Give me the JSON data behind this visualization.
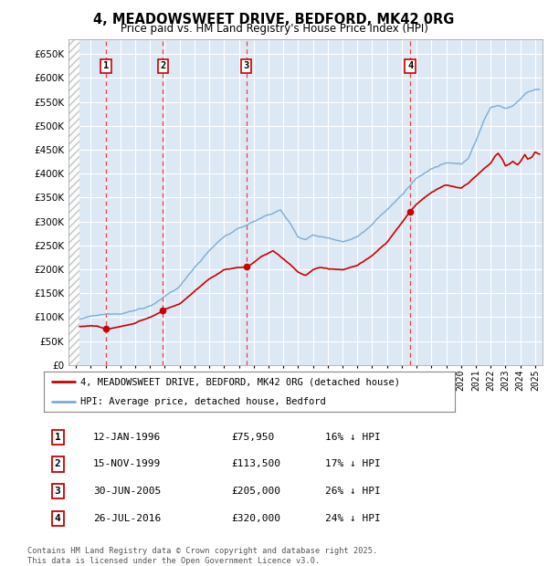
{
  "title": "4, MEADOWSWEET DRIVE, BEDFORD, MK42 0RG",
  "subtitle": "Price paid vs. HM Land Registry's House Price Index (HPI)",
  "footer": "Contains HM Land Registry data © Crown copyright and database right 2025.\nThis data is licensed under the Open Government Licence v3.0.",
  "legend_line1": "4, MEADOWSWEET DRIVE, BEDFORD, MK42 0RG (detached house)",
  "legend_line2": "HPI: Average price, detached house, Bedford",
  "purchases": [
    {
      "num": 1,
      "date": "12-JAN-1996",
      "price": 75950,
      "pct": "16% ↓ HPI",
      "year": 1996.04
    },
    {
      "num": 2,
      "date": "15-NOV-1999",
      "price": 113500,
      "pct": "17% ↓ HPI",
      "year": 1999.88
    },
    {
      "num": 3,
      "date": "30-JUN-2005",
      "price": 205000,
      "pct": "26% ↓ HPI",
      "year": 2005.5
    },
    {
      "num": 4,
      "date": "26-JUL-2016",
      "price": 320000,
      "pct": "24% ↓ HPI",
      "year": 2016.57
    }
  ],
  "ylim": [
    0,
    680000
  ],
  "yticks": [
    0,
    50000,
    100000,
    150000,
    200000,
    250000,
    300000,
    350000,
    400000,
    450000,
    500000,
    550000,
    600000,
    650000
  ],
  "xlim_start": 1993.5,
  "xlim_end": 2025.5,
  "data_start": 1994.25,
  "plot_bg_color": "#dde8f5",
  "grid_color": "#ffffff",
  "red_line_color": "#cc0000",
  "blue_line_color": "#7aadd4",
  "dashed_line_color": "#ee2222",
  "hpi_segments": [
    [
      1994.0,
      95000
    ],
    [
      1995.0,
      100000
    ],
    [
      1996.0,
      103000
    ],
    [
      1997.0,
      108000
    ],
    [
      1998.0,
      115000
    ],
    [
      1999.0,
      125000
    ],
    [
      2000.0,
      143000
    ],
    [
      2001.0,
      163000
    ],
    [
      2002.0,
      205000
    ],
    [
      2003.0,
      240000
    ],
    [
      2004.0,
      270000
    ],
    [
      2005.0,
      285000
    ],
    [
      2006.0,
      300000
    ],
    [
      2007.0,
      315000
    ],
    [
      2007.8,
      325000
    ],
    [
      2008.5,
      295000
    ],
    [
      2009.0,
      270000
    ],
    [
      2009.5,
      265000
    ],
    [
      2010.0,
      275000
    ],
    [
      2011.0,
      270000
    ],
    [
      2012.0,
      265000
    ],
    [
      2013.0,
      275000
    ],
    [
      2014.0,
      300000
    ],
    [
      2015.0,
      330000
    ],
    [
      2016.0,
      360000
    ],
    [
      2017.0,
      395000
    ],
    [
      2018.0,
      415000
    ],
    [
      2019.0,
      425000
    ],
    [
      2020.0,
      420000
    ],
    [
      2020.5,
      435000
    ],
    [
      2021.0,
      470000
    ],
    [
      2021.5,
      510000
    ],
    [
      2022.0,
      540000
    ],
    [
      2022.5,
      545000
    ],
    [
      2023.0,
      540000
    ],
    [
      2023.5,
      545000
    ],
    [
      2024.0,
      560000
    ],
    [
      2024.5,
      575000
    ],
    [
      2025.0,
      580000
    ],
    [
      2025.3,
      578000
    ]
  ],
  "red_segments": [
    [
      1994.0,
      80000
    ],
    [
      1995.0,
      83000
    ],
    [
      1995.5,
      82000
    ],
    [
      1996.04,
      75950
    ],
    [
      1996.5,
      78000
    ],
    [
      1997.0,
      82000
    ],
    [
      1998.0,
      88000
    ],
    [
      1999.0,
      100000
    ],
    [
      1999.88,
      113500
    ],
    [
      2000.0,
      117000
    ],
    [
      2001.0,
      128000
    ],
    [
      2002.0,
      155000
    ],
    [
      2003.0,
      180000
    ],
    [
      2004.0,
      200000
    ],
    [
      2005.0,
      205000
    ],
    [
      2005.5,
      205000
    ],
    [
      2006.0,
      215000
    ],
    [
      2006.5,
      228000
    ],
    [
      2007.0,
      235000
    ],
    [
      2007.3,
      240000
    ],
    [
      2007.8,
      228000
    ],
    [
      2008.5,
      210000
    ],
    [
      2009.0,
      195000
    ],
    [
      2009.5,
      188000
    ],
    [
      2010.0,
      200000
    ],
    [
      2010.5,
      205000
    ],
    [
      2011.0,
      202000
    ],
    [
      2011.5,
      200000
    ],
    [
      2012.0,
      198000
    ],
    [
      2013.0,
      208000
    ],
    [
      2014.0,
      228000
    ],
    [
      2015.0,
      255000
    ],
    [
      2016.0,
      295000
    ],
    [
      2016.57,
      320000
    ],
    [
      2017.0,
      335000
    ],
    [
      2017.5,
      348000
    ],
    [
      2018.0,
      360000
    ],
    [
      2018.5,
      368000
    ],
    [
      2019.0,
      375000
    ],
    [
      2019.5,
      372000
    ],
    [
      2020.0,
      368000
    ],
    [
      2020.5,
      378000
    ],
    [
      2021.0,
      392000
    ],
    [
      2021.5,
      408000
    ],
    [
      2022.0,
      420000
    ],
    [
      2022.3,
      435000
    ],
    [
      2022.5,
      440000
    ],
    [
      2022.8,
      428000
    ],
    [
      2023.0,
      415000
    ],
    [
      2023.3,
      420000
    ],
    [
      2023.5,
      425000
    ],
    [
      2023.8,
      418000
    ],
    [
      2024.0,
      425000
    ],
    [
      2024.3,
      440000
    ],
    [
      2024.5,
      430000
    ],
    [
      2024.8,
      435000
    ],
    [
      2025.0,
      445000
    ],
    [
      2025.3,
      440000
    ]
  ]
}
